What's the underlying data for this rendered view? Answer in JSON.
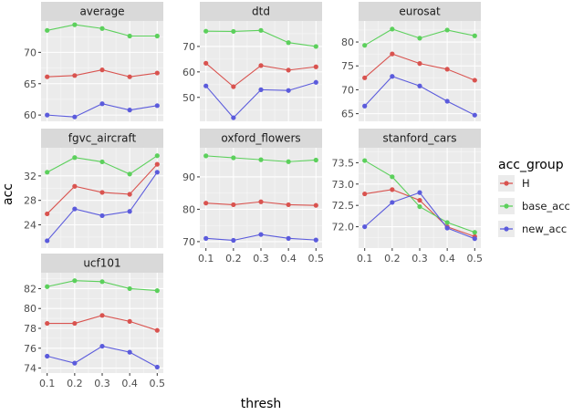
{
  "chart_data": {
    "type": "line",
    "xlabel": "thresh",
    "ylabel": "acc",
    "x": [
      0.1,
      0.2,
      0.3,
      0.4,
      0.5
    ],
    "x_ticks": [
      "0.1",
      "0.2",
      "0.3",
      "0.4",
      "0.5"
    ],
    "legend": {
      "title": "acc_group",
      "placement": "right",
      "entries": [
        {
          "key": "H",
          "label": "H",
          "color": "#d9534f"
        },
        {
          "key": "base_acc",
          "label": "base_acc",
          "color": "#5cd05c"
        },
        {
          "key": "new_acc",
          "label": "new_acc",
          "color": "#5b5bdc"
        }
      ]
    },
    "background": "#ebebeb",
    "grid": true,
    "panels": [
      {
        "name": "average",
        "ylim": [
          59.0,
          75.0
        ],
        "y_ticks": [
          60,
          65,
          70
        ],
        "series": {
          "H": [
            66.1,
            66.3,
            67.2,
            66.1,
            66.7
          ],
          "base_acc": [
            73.5,
            74.4,
            73.8,
            72.6,
            72.6
          ],
          "new_acc": [
            60.0,
            59.7,
            61.8,
            60.8,
            61.5
          ]
        }
      },
      {
        "name": "dtd",
        "ylim": [
          40.6,
          80.0
        ],
        "y_ticks": [
          50,
          60,
          70
        ],
        "series": {
          "H": [
            63.4,
            54.2,
            62.5,
            60.7,
            62.0
          ],
          "base_acc": [
            76.0,
            75.9,
            76.3,
            71.5,
            70.0
          ],
          "new_acc": [
            54.5,
            42.0,
            53.0,
            52.7,
            55.9
          ]
        }
      },
      {
        "name": "eurosat",
        "ylim": [
          63.4,
          84.4
        ],
        "y_ticks": [
          65,
          70,
          75,
          80
        ],
        "series": {
          "H": [
            72.5,
            77.5,
            75.5,
            74.3,
            72.0
          ],
          "base_acc": [
            79.3,
            82.7,
            80.8,
            82.5,
            81.3
          ],
          "new_acc": [
            66.6,
            72.8,
            70.8,
            67.6,
            64.7
          ]
        }
      },
      {
        "name": "fgvc_aircraft",
        "ylim": [
          20.2,
          36.6
        ],
        "y_ticks": [
          24,
          28,
          32
        ],
        "series": {
          "H": [
            25.8,
            30.3,
            29.3,
            29.0,
            33.9
          ],
          "base_acc": [
            32.6,
            35.0,
            34.3,
            32.3,
            35.3
          ],
          "new_acc": [
            21.4,
            26.6,
            25.5,
            26.2,
            32.6
          ]
        }
      },
      {
        "name": "oxford_flowers",
        "ylim": [
          68.0,
          99.0
        ],
        "y_ticks": [
          70,
          80,
          90
        ],
        "series": {
          "H": [
            81.9,
            81.4,
            82.3,
            81.4,
            81.2
          ],
          "base_acc": [
            96.5,
            95.9,
            95.3,
            94.7,
            95.2
          ],
          "new_acc": [
            71.0,
            70.4,
            72.2,
            71.0,
            70.5
          ]
        }
      },
      {
        "name": "stanford_cars",
        "ylim": [
          71.5,
          73.85
        ],
        "y_ticks": [
          72.0,
          72.5,
          73.0,
          73.5
        ],
        "series": {
          "H": [
            72.77,
            72.87,
            72.62,
            72.0,
            71.77
          ],
          "base_acc": [
            73.55,
            73.17,
            72.47,
            72.1,
            71.87
          ],
          "new_acc": [
            72.0,
            72.57,
            72.8,
            71.97,
            71.72
          ]
        }
      },
      {
        "name": "ucf101",
        "ylim": [
          73.5,
          83.6
        ],
        "y_ticks": [
          74,
          76,
          78,
          80,
          82
        ],
        "series": {
          "H": [
            78.5,
            78.5,
            79.3,
            78.7,
            77.8
          ],
          "base_acc": [
            82.2,
            82.8,
            82.7,
            82.0,
            81.8
          ],
          "new_acc": [
            75.2,
            74.5,
            76.2,
            75.6,
            74.1
          ]
        }
      }
    ]
  }
}
